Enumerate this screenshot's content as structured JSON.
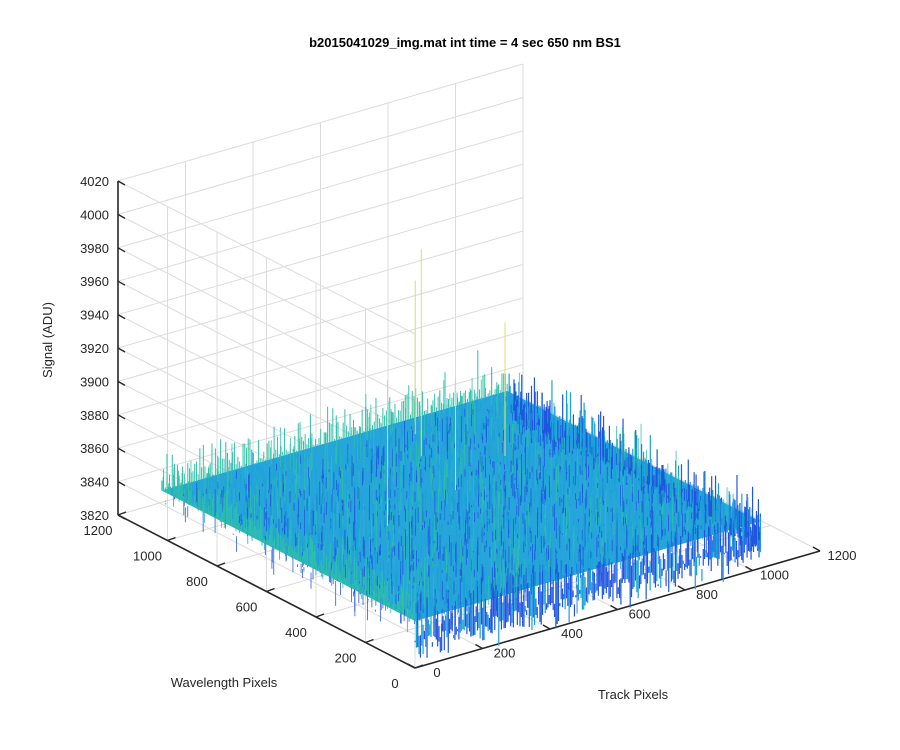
{
  "chart_data": {
    "type": "surface",
    "title": "b2015041029_img.mat int time = 4 sec  650 nm BS1",
    "xlabel": "Track Pixels",
    "ylabel": "Wavelength Pixels",
    "zlabel": "Signal (ADU)",
    "xlim": [
      0,
      1200
    ],
    "ylim": [
      0,
      1200
    ],
    "zlim": [
      3820,
      4020
    ],
    "xticks": [
      "0",
      "200",
      "400",
      "600",
      "800",
      "1000",
      "1200"
    ],
    "yticks": [
      "0",
      "200",
      "400",
      "600",
      "800",
      "1000",
      "1200"
    ],
    "zticks": [
      "3820",
      "3840",
      "3860",
      "3880",
      "3900",
      "3920",
      "3940",
      "3960",
      "3980",
      "4000",
      "4020"
    ],
    "data_extent": {
      "x": [
        1,
        1024
      ],
      "y": [
        1,
        1024
      ]
    },
    "signal": {
      "mean": 3848,
      "noise_low": 3832,
      "noise_high": 3868,
      "max_spike": 3972
    },
    "grid": true,
    "colormap": "parula",
    "colors": {
      "low": "#1f56e0",
      "mid": "#1aa0d8",
      "high": "#2fc0a8",
      "peak": "#d8e070"
    }
  }
}
